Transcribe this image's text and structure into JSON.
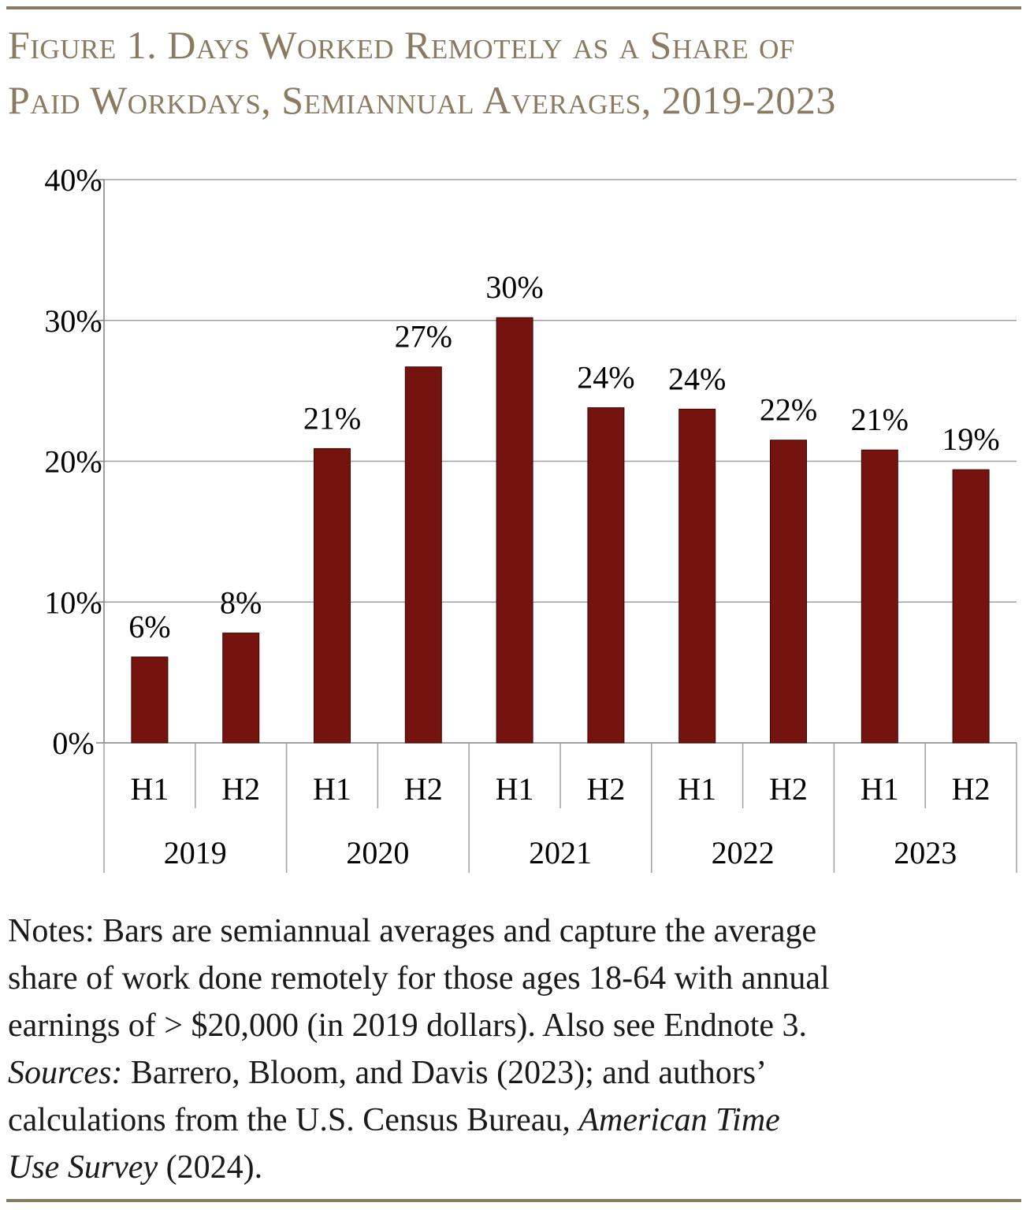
{
  "figure": {
    "title_line1": "Figure 1. Days Worked Remotely as a Share of",
    "title_line2": "Paid Workdays, Semiannual Averages, 2019-2023"
  },
  "chart_data": {
    "type": "bar",
    "title": "Figure 1. Days Worked Remotely as a Share of Paid Workdays, Semiannual Averages, 2019-2023",
    "categories": [
      "H1",
      "H2",
      "H1",
      "H2",
      "H1",
      "H2",
      "H1",
      "H2",
      "H1",
      "H2"
    ],
    "groups": [
      "2019",
      "2020",
      "2021",
      "2022",
      "2023"
    ],
    "values": [
      6.1,
      7.8,
      20.9,
      26.7,
      30.2,
      23.8,
      23.7,
      21.5,
      20.8,
      19.4
    ],
    "data_labels": [
      "6%",
      "8%",
      "21%",
      "27%",
      "30%",
      "24%",
      "24%",
      "22%",
      "21%",
      "19%"
    ],
    "ylim": [
      0,
      40
    ],
    "yticks": [
      0,
      10,
      20,
      30,
      40
    ],
    "ytick_labels": [
      "0%",
      "10%",
      "20%",
      "30%",
      "40%"
    ],
    "xlabel": "",
    "ylabel": "",
    "grid": true,
    "bar_color": "#75130f",
    "grid_color": "#a0a0a0"
  },
  "notes": {
    "line1": "Notes: Bars are semiannual averages and capture the average",
    "line2": "share of work done remotely for those ages 18-64 with annual",
    "line3": "earnings of > $20,000 (in 2019 dollars).  Also see Endnote 3.",
    "sources_label": "Sources:",
    "sources_text1": " Barrero, Bloom, and Davis (2023); and authors’",
    "sources_line2_prefix": "calculations from the U.S. Census Bureau, ",
    "sources_title_part1": "American Time",
    "sources_title_part2": "Use Survey",
    "sources_end": " (2024)."
  },
  "colors": {
    "accent": "#8a7a60",
    "bar": "#75130f"
  }
}
